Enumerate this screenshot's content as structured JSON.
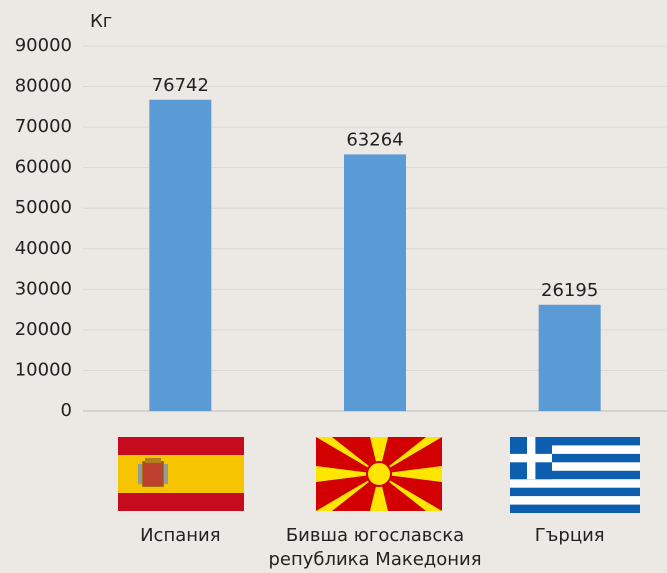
{
  "chart_data": {
    "type": "bar",
    "y_label": "Кг",
    "categories": [
      "Испания",
      "Бивша югославска република Македония",
      "Гърция"
    ],
    "values": [
      76742,
      63264,
      26195
    ],
    "color": "#5b9bd5",
    "ylim": [
      0,
      90000
    ],
    "yticks": [
      0,
      10000,
      20000,
      30000,
      40000,
      50000,
      60000,
      70000,
      80000,
      90000
    ],
    "grid": true
  }
}
